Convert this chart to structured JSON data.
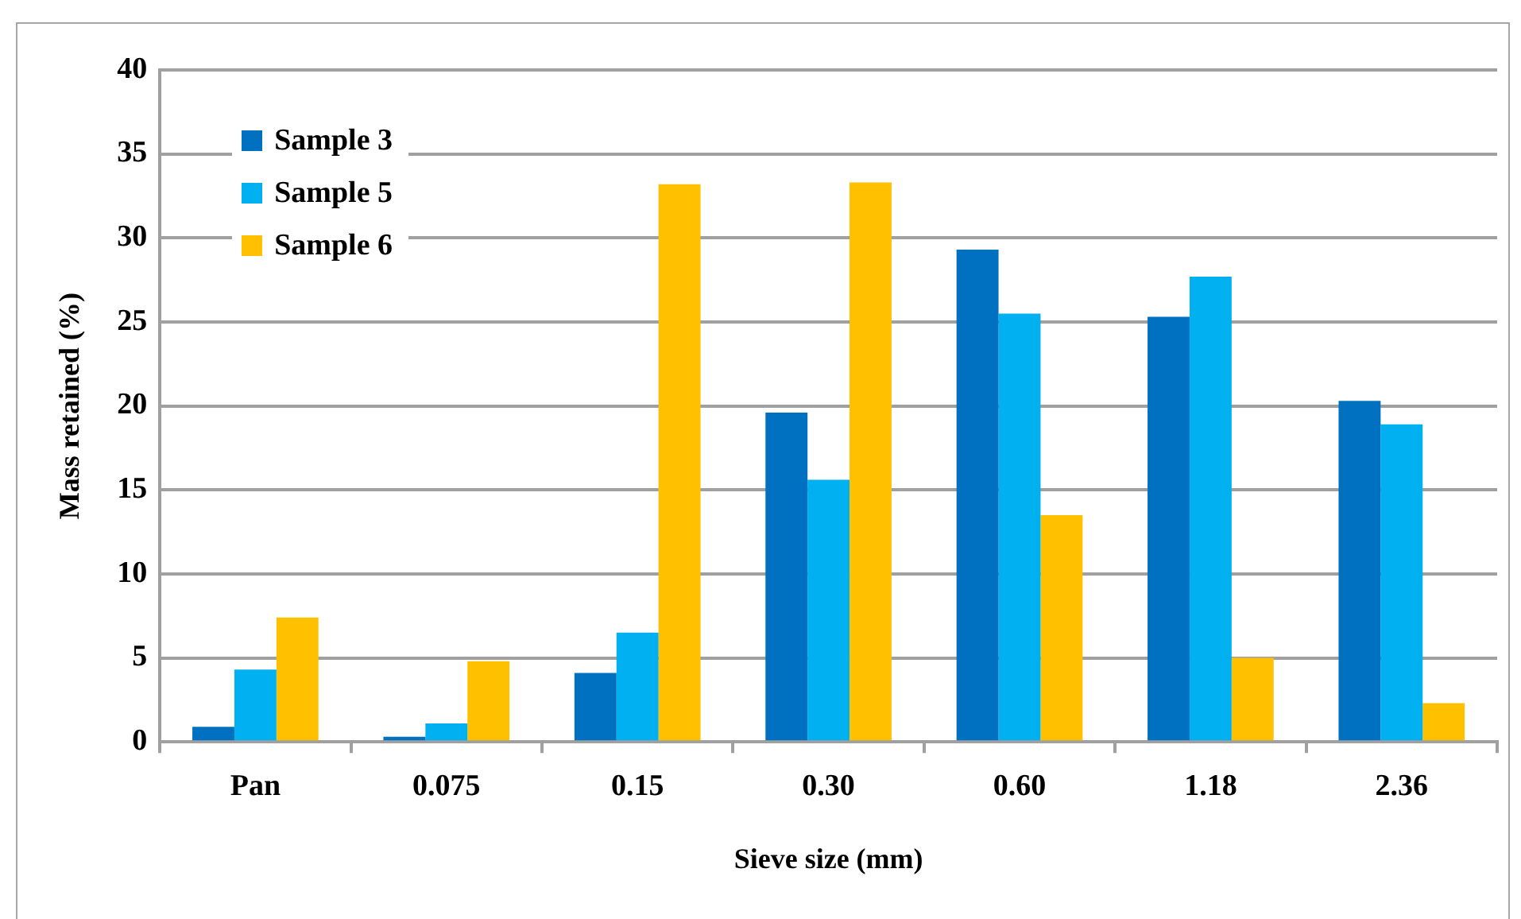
{
  "chart_data": {
    "type": "bar",
    "xlabel": "Sieve size (mm)",
    "ylabel": "Mass retained (%)",
    "categories": [
      "Pan",
      "0.075",
      "0.15",
      "0.30",
      "0.60",
      "1.18",
      "2.36"
    ],
    "series": [
      {
        "name": "Sample 3",
        "color": "#0070c0",
        "values": [
          0.9,
          0.3,
          4.1,
          19.6,
          29.3,
          25.3,
          20.3
        ]
      },
      {
        "name": "Sample 5",
        "color": "#00b0f0",
        "values": [
          4.3,
          1.1,
          6.5,
          15.6,
          25.5,
          27.7,
          18.9
        ]
      },
      {
        "name": "Sample 6",
        "color": "#ffc000",
        "values": [
          7.4,
          4.8,
          33.2,
          33.3,
          13.5,
          5.0,
          2.3
        ]
      }
    ],
    "ylim": [
      0,
      40
    ],
    "yticks": [
      0,
      5,
      10,
      15,
      20,
      25,
      30,
      35,
      40
    ],
    "grid": "y",
    "legend": "top left"
  }
}
